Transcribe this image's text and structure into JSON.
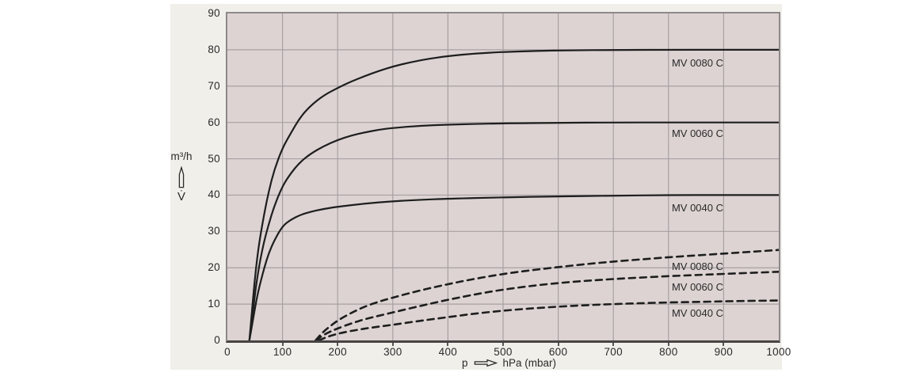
{
  "colors": {
    "page_bg": "#ffffff",
    "panel_bg": "#f1efea",
    "plot_bg": "#ddd3d3",
    "grid": "#a7a0a2",
    "axis_dark": "#474344",
    "curve": "#1e1e1e",
    "text": "#2a2a2a"
  },
  "y_axis": {
    "unit_label": "m³/h",
    "symbol": "V̇",
    "arrow_icon": "up-outline-arrow",
    "ticks": [
      90,
      80,
      70,
      60,
      50,
      40,
      30,
      20,
      10,
      0
    ]
  },
  "x_axis": {
    "label_prefix": "p",
    "arrow_icon": "right-outline-arrow",
    "label_suffix": "hPa (mbar)",
    "ticks": [
      0,
      100,
      200,
      300,
      400,
      500,
      600,
      700,
      800,
      900,
      1000
    ]
  },
  "chart_data": {
    "type": "line",
    "title": "",
    "xlabel": "p (hPa / mbar)",
    "ylabel": "V (m³/h)",
    "xlim": [
      0,
      1000
    ],
    "ylim": [
      0,
      90
    ],
    "grid": true,
    "legend_position": "inline-labels",
    "series": [
      {
        "name": "MV 0080 C",
        "style": "solid",
        "points": [
          [
            40,
            0
          ],
          [
            44,
            7
          ],
          [
            48,
            14
          ],
          [
            52,
            20
          ],
          [
            56,
            25
          ],
          [
            60,
            29
          ],
          [
            67,
            35
          ],
          [
            75,
            41
          ],
          [
            85,
            47
          ],
          [
            100,
            53
          ],
          [
            115,
            57
          ],
          [
            130,
            61
          ],
          [
            150,
            64.5
          ],
          [
            175,
            67.5
          ],
          [
            200,
            69.5
          ],
          [
            225,
            71.3
          ],
          [
            250,
            72.8
          ],
          [
            275,
            74.2
          ],
          [
            300,
            75.4
          ],
          [
            330,
            76.5
          ],
          [
            360,
            77.4
          ],
          [
            400,
            78.3
          ],
          [
            450,
            79
          ],
          [
            500,
            79.4
          ],
          [
            560,
            79.7
          ],
          [
            620,
            79.85
          ],
          [
            700,
            79.95
          ],
          [
            800,
            80
          ],
          [
            900,
            80
          ],
          [
            1000,
            80
          ]
        ]
      },
      {
        "name": "MV 0060 C",
        "style": "solid",
        "points": [
          [
            40,
            0
          ],
          [
            44,
            5
          ],
          [
            48,
            10
          ],
          [
            52,
            15
          ],
          [
            56,
            19
          ],
          [
            60,
            22.5
          ],
          [
            67,
            27.5
          ],
          [
            75,
            32
          ],
          [
            85,
            37
          ],
          [
            100,
            42.5
          ],
          [
            115,
            46
          ],
          [
            130,
            48.8
          ],
          [
            150,
            51.3
          ],
          [
            175,
            53.5
          ],
          [
            200,
            55.2
          ],
          [
            225,
            56.4
          ],
          [
            250,
            57.3
          ],
          [
            275,
            58
          ],
          [
            300,
            58.5
          ],
          [
            350,
            59.1
          ],
          [
            400,
            59.4
          ],
          [
            450,
            59.6
          ],
          [
            500,
            59.75
          ],
          [
            600,
            59.9
          ],
          [
            700,
            60
          ],
          [
            800,
            60
          ],
          [
            900,
            60
          ],
          [
            1000,
            60
          ]
        ]
      },
      {
        "name": "MV 0040 C",
        "style": "solid",
        "points": [
          [
            40,
            0
          ],
          [
            44,
            3.5
          ],
          [
            48,
            7
          ],
          [
            52,
            10.5
          ],
          [
            56,
            13.5
          ],
          [
            60,
            16
          ],
          [
            67,
            20
          ],
          [
            75,
            24
          ],
          [
            85,
            27.5
          ],
          [
            100,
            31.5
          ],
          [
            115,
            33.2
          ],
          [
            130,
            34.4
          ],
          [
            150,
            35.4
          ],
          [
            175,
            36.2
          ],
          [
            200,
            36.8
          ],
          [
            250,
            37.7
          ],
          [
            300,
            38.3
          ],
          [
            350,
            38.7
          ],
          [
            400,
            39
          ],
          [
            500,
            39.4
          ],
          [
            600,
            39.65
          ],
          [
            700,
            39.85
          ],
          [
            800,
            40
          ],
          [
            900,
            40
          ],
          [
            1000,
            40
          ]
        ]
      },
      {
        "name": "MV 0080 C",
        "style": "dashed",
        "points": [
          [
            160,
            0
          ],
          [
            170,
            1.8
          ],
          [
            182,
            3.4
          ],
          [
            200,
            5.5
          ],
          [
            225,
            7.6
          ],
          [
            250,
            9.4
          ],
          [
            275,
            10.7
          ],
          [
            300,
            11.8
          ],
          [
            350,
            13.8
          ],
          [
            400,
            15.5
          ],
          [
            450,
            17
          ],
          [
            500,
            18.3
          ],
          [
            550,
            19.3
          ],
          [
            600,
            20.2
          ],
          [
            650,
            21
          ],
          [
            700,
            21.7
          ],
          [
            750,
            22.3
          ],
          [
            800,
            22.9
          ],
          [
            850,
            23.4
          ],
          [
            900,
            23.9
          ],
          [
            950,
            24.4
          ],
          [
            1000,
            24.9
          ]
        ]
      },
      {
        "name": "MV 0060 C",
        "style": "dashed",
        "points": [
          [
            160,
            0
          ],
          [
            172,
            1.3
          ],
          [
            186,
            2.4
          ],
          [
            200,
            3.3
          ],
          [
            225,
            4.7
          ],
          [
            250,
            5.9
          ],
          [
            300,
            7.7
          ],
          [
            350,
            9.5
          ],
          [
            400,
            11.2
          ],
          [
            450,
            12.7
          ],
          [
            500,
            14
          ],
          [
            550,
            15
          ],
          [
            600,
            15.8
          ],
          [
            650,
            16.4
          ],
          [
            700,
            16.9
          ],
          [
            750,
            17.3
          ],
          [
            800,
            17.7
          ],
          [
            850,
            18
          ],
          [
            900,
            18.3
          ],
          [
            950,
            18.6
          ],
          [
            1000,
            18.9
          ]
        ]
      },
      {
        "name": "MV 0040 C",
        "style": "dashed",
        "points": [
          [
            166,
            0
          ],
          [
            178,
            0.8
          ],
          [
            192,
            1.5
          ],
          [
            210,
            2.2
          ],
          [
            235,
            2.9
          ],
          [
            260,
            3.5
          ],
          [
            300,
            4.3
          ],
          [
            350,
            5.4
          ],
          [
            400,
            6.4
          ],
          [
            450,
            7.4
          ],
          [
            500,
            8.2
          ],
          [
            550,
            8.8
          ],
          [
            600,
            9.3
          ],
          [
            650,
            9.7
          ],
          [
            700,
            10
          ],
          [
            750,
            10.25
          ],
          [
            800,
            10.45
          ],
          [
            850,
            10.6
          ],
          [
            900,
            10.75
          ],
          [
            950,
            10.9
          ],
          [
            1000,
            11
          ]
        ]
      }
    ],
    "labels": [
      {
        "text": "MV 0080 C",
        "series_style": "solid",
        "x": 806,
        "y": 76.3
      },
      {
        "text": "MV 0060 C",
        "series_style": "solid",
        "x": 806,
        "y": 56.8
      },
      {
        "text": "MV 0040 C",
        "series_style": "solid",
        "x": 806,
        "y": 36.4
      },
      {
        "text": "MV 0080 C",
        "series_style": "dashed",
        "x": 806,
        "y": 20.2
      },
      {
        "text": "MV 0060 C",
        "series_style": "dashed",
        "x": 806,
        "y": 14.7
      },
      {
        "text": "MV 0040 C",
        "series_style": "dashed",
        "x": 806,
        "y": 7.4
      }
    ]
  }
}
